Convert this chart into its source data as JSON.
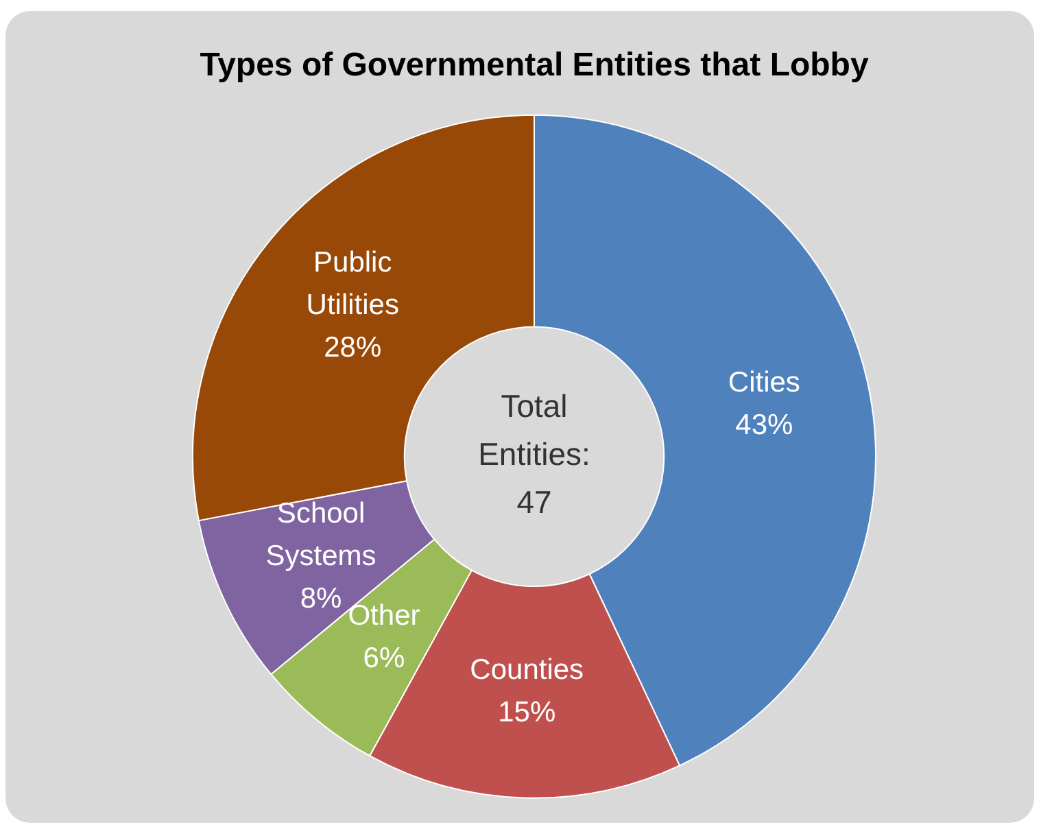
{
  "chart_data": {
    "type": "donut",
    "title": "Types of Governmental Entities that Lobby",
    "categories": [
      "Cities",
      "Counties",
      "Other",
      "School Systems",
      "Public Utilities"
    ],
    "values": [
      43,
      15,
      6,
      8,
      28
    ],
    "value_labels": [
      "43%",
      "15%",
      "6%",
      "8%",
      "28%"
    ],
    "colors": [
      "#4f81bd",
      "#c0504d",
      "#9bbb59",
      "#8064a2",
      "#984807"
    ],
    "annotations": [
      "Total Entities: 47"
    ],
    "legend": false
  }
}
